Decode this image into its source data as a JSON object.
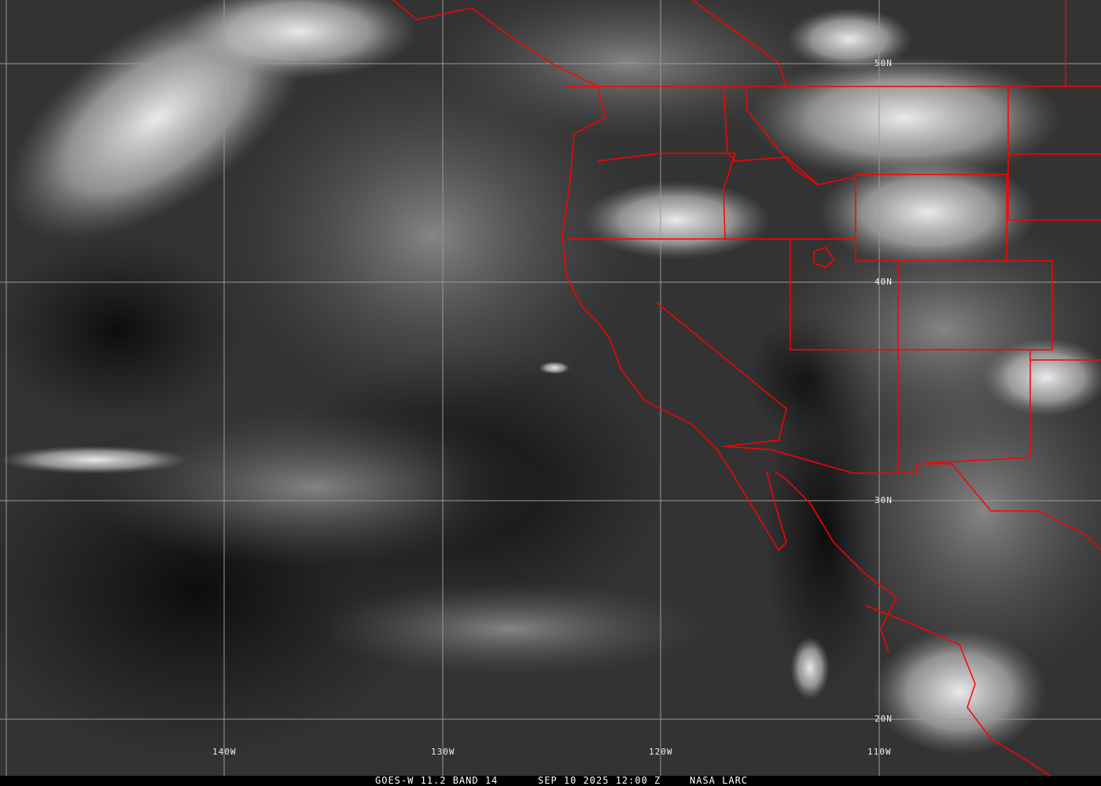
{
  "image": {
    "type": "infrared satellite imagery",
    "colors": {
      "border": "#ff0000",
      "grid": "#9a9a9a",
      "label": "#eeeeee",
      "caption_bg": "#000000"
    }
  },
  "grid_labels": {
    "lat": [
      "50N",
      "40N",
      "30N",
      "20N"
    ],
    "lon": [
      "140W",
      "130W",
      "120W",
      "110W"
    ]
  },
  "caption": {
    "satellite": "GOES-W 11.2 BAND 14",
    "datetime": "SEP 10 2025 12:00 Z",
    "source": "NASA LARC"
  }
}
